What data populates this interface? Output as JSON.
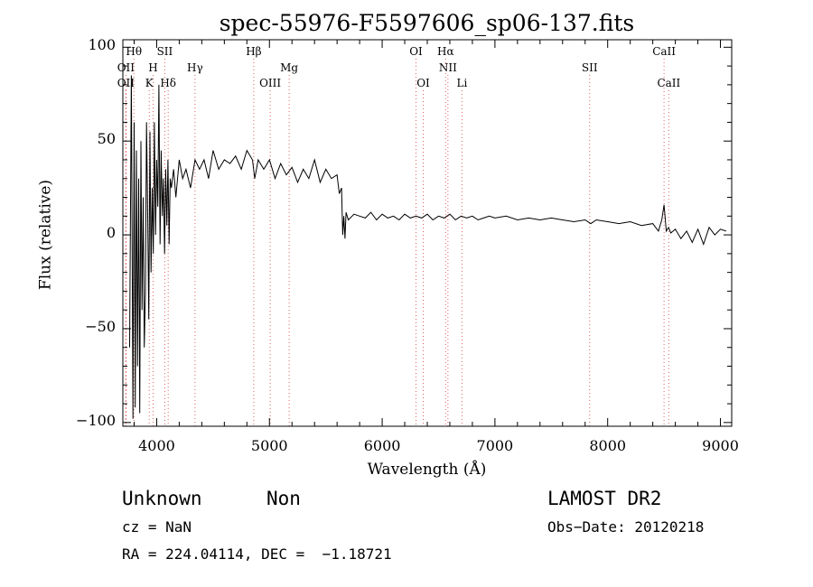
{
  "chart_data": {
    "type": "line",
    "title": "spec-55976-F5597606_sp06-137.fits",
    "xlabel": "Wavelength (Å)",
    "ylabel": "Flux (relative)",
    "xlim": [
      3700,
      9100
    ],
    "ylim": [
      -102,
      104
    ],
    "xticks": [
      4000,
      5000,
      6000,
      7000,
      8000,
      9000
    ],
    "yticks": [
      -100,
      -50,
      0,
      50,
      100
    ],
    "grid": false,
    "line_color": "#000000",
    "marker_color": "#e06060",
    "series": [
      {
        "x": [
          3760,
          3775,
          3790,
          3800,
          3810,
          3820,
          3830,
          3840,
          3850,
          3860,
          3870,
          3880,
          3890,
          3900,
          3910,
          3920,
          3930,
          3940,
          3950,
          3960,
          3970,
          3980,
          3990,
          4000,
          4010,
          4020,
          4030,
          4040,
          4050,
          4060,
          4070,
          4080,
          4090,
          4100,
          4110,
          4120,
          4130,
          4150,
          4170,
          4200,
          4230,
          4260,
          4300,
          4340,
          4380,
          4420,
          4460,
          4500,
          4550,
          4600,
          4650,
          4700,
          4750,
          4800,
          4850,
          4870,
          4900,
          4950,
          5000,
          5050,
          5100,
          5150,
          5200,
          5250,
          5300,
          5350,
          5400,
          5450,
          5500,
          5550,
          5600,
          5620,
          5640,
          5650,
          5660,
          5670,
          5680,
          5700,
          5750,
          5800,
          5850,
          5900,
          5950,
          6000,
          6050,
          6100,
          6150,
          6200,
          6250,
          6300,
          6350,
          6400,
          6450,
          6500,
          6550,
          6600,
          6650,
          6700,
          6750,
          6800,
          6850,
          6900,
          6950,
          7000,
          7100,
          7200,
          7300,
          7400,
          7500,
          7600,
          7700,
          7800,
          7850,
          7900,
          8000,
          8100,
          8200,
          8300,
          8400,
          8450,
          8480,
          8500,
          8520,
          8540,
          8560,
          8600,
          8650,
          8700,
          8750,
          8800,
          8850,
          8900,
          8950,
          9000,
          9050
        ],
        "y": [
          -60,
          85,
          -98,
          60,
          -92,
          45,
          -70,
          30,
          -95,
          50,
          -40,
          20,
          -60,
          -30,
          60,
          10,
          -45,
          55,
          -20,
          25,
          -10,
          60,
          0,
          40,
          15,
          80,
          -5,
          45,
          10,
          30,
          -10,
          35,
          5,
          40,
          -5,
          30,
          25,
          35,
          20,
          40,
          30,
          35,
          25,
          40,
          35,
          40,
          30,
          45,
          35,
          40,
          38,
          42,
          35,
          45,
          40,
          30,
          40,
          35,
          40,
          30,
          38,
          32,
          36,
          28,
          35,
          30,
          40,
          28,
          35,
          30,
          32,
          22,
          25,
          0,
          10,
          -2,
          12,
          8,
          11,
          10,
          9,
          12,
          8,
          11,
          9,
          10,
          8,
          11,
          9,
          10,
          9,
          11,
          8,
          10,
          9,
          11,
          8,
          10,
          9,
          10,
          8,
          9,
          10,
          9,
          10,
          8,
          9,
          8,
          9,
          8,
          7,
          8,
          6,
          8,
          7,
          6,
          7,
          5,
          6,
          2,
          8,
          16,
          2,
          4,
          1,
          3,
          -2,
          2,
          -4,
          3,
          -5,
          4,
          0,
          3,
          2
        ],
        "name": ""
      }
    ],
    "line_markers": [
      {
        "label": "Hθ",
        "x": 3798,
        "row": 0
      },
      {
        "label": "OII",
        "x": 3727,
        "row": 1
      },
      {
        "label": "OII",
        "x": 3727,
        "row": 2
      },
      {
        "label": "SII",
        "x": 4072,
        "row": 0
      },
      {
        "label": "H",
        "x": 3968,
        "row": 1
      },
      {
        "label": "K",
        "x": 3934,
        "row": 2
      },
      {
        "label": "Hδ",
        "x": 4102,
        "row": 2
      },
      {
        "label": "Hγ",
        "x": 4340,
        "row": 1
      },
      {
        "label": "Hβ",
        "x": 4861,
        "row": 0
      },
      {
        "label": "Mg",
        "x": 5175,
        "row": 1
      },
      {
        "label": "OIII",
        "x": 5007,
        "row": 2
      },
      {
        "label": "OI",
        "x": 6300,
        "row": 0
      },
      {
        "label": "Hα",
        "x": 6563,
        "row": 0
      },
      {
        "label": "NII",
        "x": 6583,
        "row": 1
      },
      {
        "label": "OI",
        "x": 6364,
        "row": 2
      },
      {
        "label": "Li",
        "x": 6708,
        "row": 2
      },
      {
        "label": "SII",
        "x": 7840,
        "row": 1
      },
      {
        "label": "CaII",
        "x": 8500,
        "row": 0
      },
      {
        "label": "CaII",
        "x": 8542,
        "row": 2
      }
    ]
  },
  "footer": {
    "class_label": "Unknown",
    "subclass_label": "Non",
    "cz_text": "cz = NaN",
    "radec_text": "RA = 224.04114, DEC =  −1.18721",
    "survey_text": "LAMOST DR2",
    "obsdate_text": "Obs−Date: 20120218"
  }
}
